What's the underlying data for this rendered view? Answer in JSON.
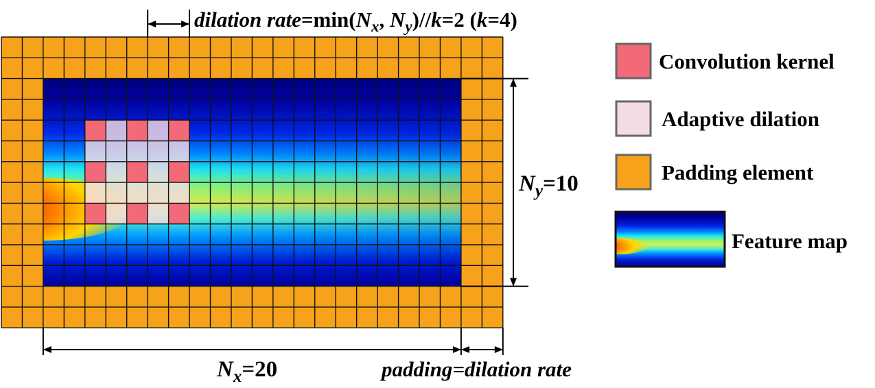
{
  "diagram": {
    "top_annotation": {
      "part1": "dilation rate",
      "part2": "=min(",
      "nx_base": "N",
      "nx_sub": "x",
      "comma": ", ",
      "ny_base": "N",
      "ny_sub": "y",
      "part3": ")//",
      "k": "k",
      "part4": "=2 (",
      "k2": "k",
      "part5": "=4)"
    },
    "ny_label": {
      "base": "N",
      "sub": "y",
      "value": "=10"
    },
    "nx_label": {
      "base": "N",
      "sub": "x",
      "value": "=20"
    },
    "padding_label": {
      "p1": "padding",
      "p2": "=dilation rate"
    },
    "grid": {
      "nx": 20,
      "ny": 10,
      "padding": 2,
      "kernel_size": 3,
      "dilation_rate": 2,
      "kernel_origin": [
        2,
        2
      ]
    },
    "legend": [
      {
        "key": "kernel",
        "label": "Convolution kernel"
      },
      {
        "key": "dilation",
        "label": "Adaptive dilation"
      },
      {
        "key": "padding",
        "label": "Padding element"
      },
      {
        "key": "feature",
        "label": "Feature map"
      }
    ],
    "colors": {
      "padding": "#f7a21b",
      "kernel": "#f26a78",
      "dilation": "#f5dbe2",
      "grid_line": "#111111",
      "legend_border": "#666666"
    }
  }
}
